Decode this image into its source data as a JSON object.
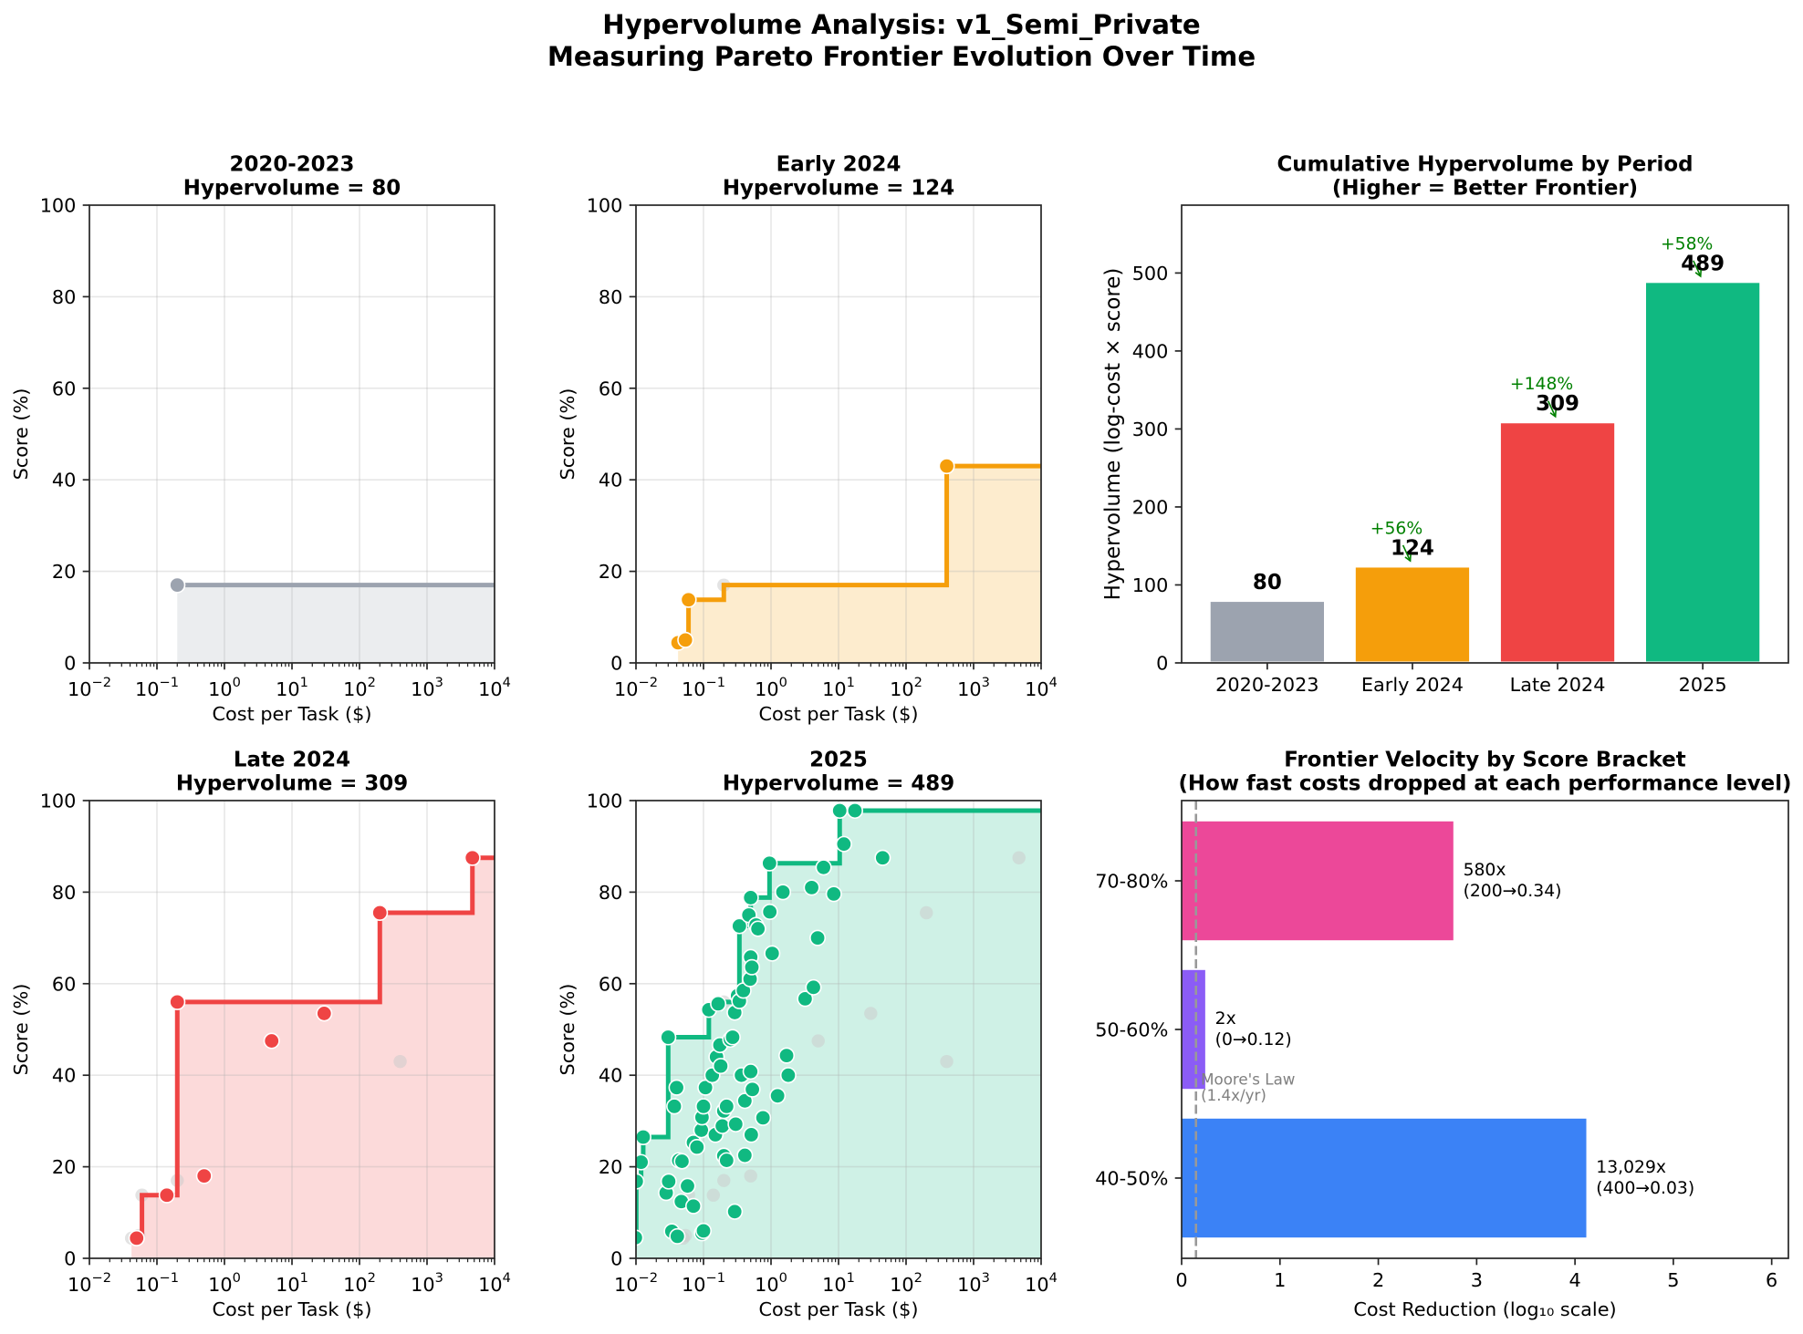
{
  "figure": {
    "title_line1": "Hypervolume Analysis: v1_Semi_Private",
    "title_line2": "Measuring Pareto Frontier Evolution Over Time"
  },
  "chart_data": [
    {
      "type": "scatter",
      "period": "2020-2023",
      "title": "2020-2023",
      "subtitle": "Hypervolume = 80",
      "hypervolume": 80,
      "xlabel": "Cost per Task ($)",
      "ylabel": "Score (%)",
      "xscale": "log",
      "xlim": [
        0.01,
        10000
      ],
      "ylim": [
        0,
        100
      ],
      "grid": true,
      "color": "#9ca3af",
      "prior_points_color": "#cccccc",
      "xticks": [
        {
          "value": 0.01,
          "base": "10",
          "exp": "−2"
        },
        {
          "value": 0.1,
          "base": "10",
          "exp": "−1"
        },
        {
          "value": 1,
          "base": "10",
          "exp": "0"
        },
        {
          "value": 10,
          "base": "10",
          "exp": "1"
        },
        {
          "value": 100,
          "base": "10",
          "exp": "2"
        },
        {
          "value": 1000,
          "base": "10",
          "exp": "3"
        },
        {
          "value": 10000,
          "base": "10",
          "exp": "4"
        }
      ],
      "yticks": [
        {
          "value": 0,
          "label": "0"
        },
        {
          "value": 20,
          "label": "20"
        },
        {
          "value": 40,
          "label": "40"
        },
        {
          "value": 60,
          "label": "60"
        },
        {
          "value": 80,
          "label": "80"
        },
        {
          "value": 100,
          "label": "100"
        }
      ],
      "points": [
        [
          0.2,
          17
        ]
      ]
    },
    {
      "type": "scatter",
      "period": "Early 2024",
      "title": "Early 2024",
      "subtitle": "Hypervolume = 124",
      "hypervolume": 124,
      "xlabel": "Cost per Task ($)",
      "ylabel": "Score (%)",
      "xscale": "log",
      "xlim": [
        0.01,
        10000
      ],
      "ylim": [
        0,
        100
      ],
      "grid": true,
      "color": "#f59e0b",
      "prior_points_color": "#cccccc",
      "xticks": [
        {
          "value": 0.01,
          "base": "10",
          "exp": "−2"
        },
        {
          "value": 0.1,
          "base": "10",
          "exp": "−1"
        },
        {
          "value": 1,
          "base": "10",
          "exp": "0"
        },
        {
          "value": 10,
          "base": "10",
          "exp": "1"
        },
        {
          "value": 100,
          "base": "10",
          "exp": "2"
        },
        {
          "value": 1000,
          "base": "10",
          "exp": "3"
        },
        {
          "value": 10000,
          "base": "10",
          "exp": "4"
        }
      ],
      "yticks": [
        {
          "value": 0,
          "label": "0"
        },
        {
          "value": 20,
          "label": "20"
        },
        {
          "value": 40,
          "label": "40"
        },
        {
          "value": 60,
          "label": "60"
        },
        {
          "value": 80,
          "label": "80"
        },
        {
          "value": 100,
          "label": "100"
        }
      ],
      "points": [
        [
          0.042,
          4.4
        ],
        [
          0.054,
          5.0
        ],
        [
          0.06,
          13.8
        ],
        [
          400,
          43
        ]
      ]
    },
    {
      "type": "scatter",
      "period": "Late 2024",
      "title": "Late 2024",
      "subtitle": "Hypervolume = 309",
      "hypervolume": 309,
      "xlabel": "Cost per Task ($)",
      "ylabel": "Score (%)",
      "xscale": "log",
      "xlim": [
        0.01,
        10000
      ],
      "ylim": [
        0,
        100
      ],
      "grid": true,
      "color": "#ef4444",
      "prior_points_color": "#cccccc",
      "xticks": [
        {
          "value": 0.01,
          "base": "10",
          "exp": "−2"
        },
        {
          "value": 0.1,
          "base": "10",
          "exp": "−1"
        },
        {
          "value": 1,
          "base": "10",
          "exp": "0"
        },
        {
          "value": 10,
          "base": "10",
          "exp": "1"
        },
        {
          "value": 100,
          "base": "10",
          "exp": "2"
        },
        {
          "value": 1000,
          "base": "10",
          "exp": "3"
        },
        {
          "value": 10000,
          "base": "10",
          "exp": "4"
        }
      ],
      "yticks": [
        {
          "value": 0,
          "label": "0"
        },
        {
          "value": 20,
          "label": "20"
        },
        {
          "value": 40,
          "label": "40"
        },
        {
          "value": 60,
          "label": "60"
        },
        {
          "value": 80,
          "label": "80"
        },
        {
          "value": 100,
          "label": "100"
        }
      ],
      "points": [
        [
          0.05,
          4.4
        ],
        [
          0.14,
          13.8
        ],
        [
          0.2,
          56
        ],
        [
          0.5,
          18
        ],
        [
          5,
          47.5
        ],
        [
          30,
          53.5
        ],
        [
          200,
          75.5
        ],
        [
          4700,
          87.5
        ]
      ]
    },
    {
      "type": "scatter",
      "period": "2025",
      "title": "2025",
      "subtitle": "Hypervolume = 489",
      "hypervolume": 489,
      "xlabel": "Cost per Task ($)",
      "ylabel": "Score (%)",
      "xscale": "log",
      "xlim": [
        0.01,
        10000
      ],
      "ylim": [
        0,
        100
      ],
      "grid": true,
      "color": "#10b981",
      "prior_points_color": "#cccccc",
      "xticks": [
        {
          "value": 0.01,
          "base": "10",
          "exp": "−2"
        },
        {
          "value": 0.1,
          "base": "10",
          "exp": "−1"
        },
        {
          "value": 1,
          "base": "10",
          "exp": "0"
        },
        {
          "value": 10,
          "base": "10",
          "exp": "1"
        },
        {
          "value": 100,
          "base": "10",
          "exp": "2"
        },
        {
          "value": 1000,
          "base": "10",
          "exp": "3"
        },
        {
          "value": 10000,
          "base": "10",
          "exp": "4"
        }
      ],
      "yticks": [
        {
          "value": 0,
          "label": "0"
        },
        {
          "value": 20,
          "label": "20"
        },
        {
          "value": 40,
          "label": "40"
        },
        {
          "value": 60,
          "label": "60"
        },
        {
          "value": 80,
          "label": "80"
        },
        {
          "value": 100,
          "label": "100"
        }
      ],
      "points": [
        [
          0.0098,
          4.5
        ],
        [
          0.0101,
          16.8
        ],
        [
          0.0119,
          21.0
        ],
        [
          0.0128,
          26.5
        ],
        [
          0.028,
          14.3
        ],
        [
          0.0305,
          16.8
        ],
        [
          0.03,
          48.3
        ],
        [
          0.034,
          5.9
        ],
        [
          0.037,
          33.2
        ],
        [
          0.04,
          37.3
        ],
        [
          0.041,
          4.8
        ],
        [
          0.043,
          21.4
        ],
        [
          0.047,
          12.4
        ],
        [
          0.048,
          21.2
        ],
        [
          0.058,
          15.8
        ],
        [
          0.071,
          25.3
        ],
        [
          0.071,
          11.4
        ],
        [
          0.08,
          24.3
        ],
        [
          0.093,
          28.0
        ],
        [
          0.095,
          30.8
        ],
        [
          0.095,
          5.5
        ],
        [
          0.1,
          33.2
        ],
        [
          0.1,
          6.0
        ],
        [
          0.107,
          37.3
        ],
        [
          0.12,
          54.3
        ],
        [
          0.135,
          40.0
        ],
        [
          0.15,
          27.0
        ],
        [
          0.156,
          44.0
        ],
        [
          0.165,
          55.6
        ],
        [
          0.175,
          46.6
        ],
        [
          0.18,
          42.0
        ],
        [
          0.19,
          28.9
        ],
        [
          0.2,
          32.2
        ],
        [
          0.2,
          22.4
        ],
        [
          0.22,
          33.2
        ],
        [
          0.22,
          21.4
        ],
        [
          0.25,
          47.8
        ],
        [
          0.27,
          48.3
        ],
        [
          0.29,
          53.7
        ],
        [
          0.29,
          10.2
        ],
        [
          0.3,
          29.3
        ],
        [
          0.32,
          57.4
        ],
        [
          0.34,
          72.6
        ],
        [
          0.34,
          56.2
        ],
        [
          0.365,
          40.0
        ],
        [
          0.39,
          58.5
        ],
        [
          0.41,
          34.4
        ],
        [
          0.41,
          22.5
        ],
        [
          0.47,
          75.0
        ],
        [
          0.49,
          61.0
        ],
        [
          0.5,
          78.8
        ],
        [
          0.5,
          65.8
        ],
        [
          0.5,
          40.8
        ],
        [
          0.51,
          27.0
        ],
        [
          0.52,
          63.6
        ],
        [
          0.53,
          36.9
        ],
        [
          0.6,
          72.8
        ],
        [
          0.64,
          72.0
        ],
        [
          0.76,
          30.7
        ],
        [
          0.95,
          86.3
        ],
        [
          0.96,
          75.7
        ],
        [
          1.04,
          66.6
        ],
        [
          1.25,
          35.5
        ],
        [
          1.5,
          80.0
        ],
        [
          1.7,
          44.3
        ],
        [
          1.8,
          40.0
        ],
        [
          3.2,
          56.7
        ],
        [
          4.0,
          81.0
        ],
        [
          4.25,
          59.2
        ],
        [
          4.9,
          70.0
        ],
        [
          6.0,
          85.4
        ],
        [
          8.5,
          79.6
        ],
        [
          10.4,
          97.8
        ],
        [
          12.0,
          90.5
        ],
        [
          17.5,
          97.8
        ],
        [
          45.0,
          87.5
        ]
      ]
    },
    {
      "type": "bar",
      "title": "Cumulative Hypervolume by Period",
      "subtitle": "(Higher = Better Frontier)",
      "xlabel": "",
      "ylabel": "Hypervolume (log-cost × score)",
      "categories": [
        "2020-2023",
        "Early 2024",
        "Late 2024",
        "2025"
      ],
      "values": [
        80,
        124,
        309,
        489
      ],
      "value_labels": [
        "80",
        "124",
        "309",
        "489"
      ],
      "pct_change_labels": [
        null,
        "+56%",
        "+148%",
        "+58%"
      ],
      "colors": [
        "#9ca3af",
        "#f59e0b",
        "#ef4444",
        "#10b981"
      ],
      "annotation_color": "#008000",
      "ylim": [
        0,
        587
      ],
      "grid": false,
      "yticks": [
        {
          "value": 0,
          "label": "0"
        },
        {
          "value": 100,
          "label": "100"
        },
        {
          "value": 200,
          "label": "200"
        },
        {
          "value": 300,
          "label": "300"
        },
        {
          "value": 400,
          "label": "400"
        },
        {
          "value": 500,
          "label": "500"
        }
      ]
    },
    {
      "type": "bar",
      "orientation": "horizontal",
      "title": "Frontier Velocity by Score Bracket",
      "subtitle": "(How fast costs dropped at each performance level)",
      "xlabel": "Cost Reduction (log₁₀ scale)",
      "ylabel": "",
      "categories": [
        "40-50%",
        "50-60%",
        "70-80%"
      ],
      "values": [
        4.115,
        0.24,
        2.763
      ],
      "ratio_labels": [
        "13,029x",
        "2x",
        "580x"
      ],
      "range_labels": [
        "(400→0.03)",
        "(0→0.12)",
        "(200→0.34)"
      ],
      "colors": [
        "#3b82f6",
        "#8b5cf6",
        "#ec4899"
      ],
      "xlim": [
        0,
        6.17
      ],
      "grid": false,
      "xticks": [
        {
          "value": 0,
          "label": "0"
        },
        {
          "value": 1,
          "label": "1"
        },
        {
          "value": 2,
          "label": "2"
        },
        {
          "value": 3,
          "label": "3"
        },
        {
          "value": 4,
          "label": "4"
        },
        {
          "value": 5,
          "label": "5"
        },
        {
          "value": 6,
          "label": "6"
        }
      ],
      "reference_line": {
        "value": 0.146,
        "label_line1": "Moore's Law",
        "label_line2": "(1.4x/yr)",
        "color": "#999999",
        "text_color": "#808080",
        "style": "dashed"
      }
    }
  ]
}
